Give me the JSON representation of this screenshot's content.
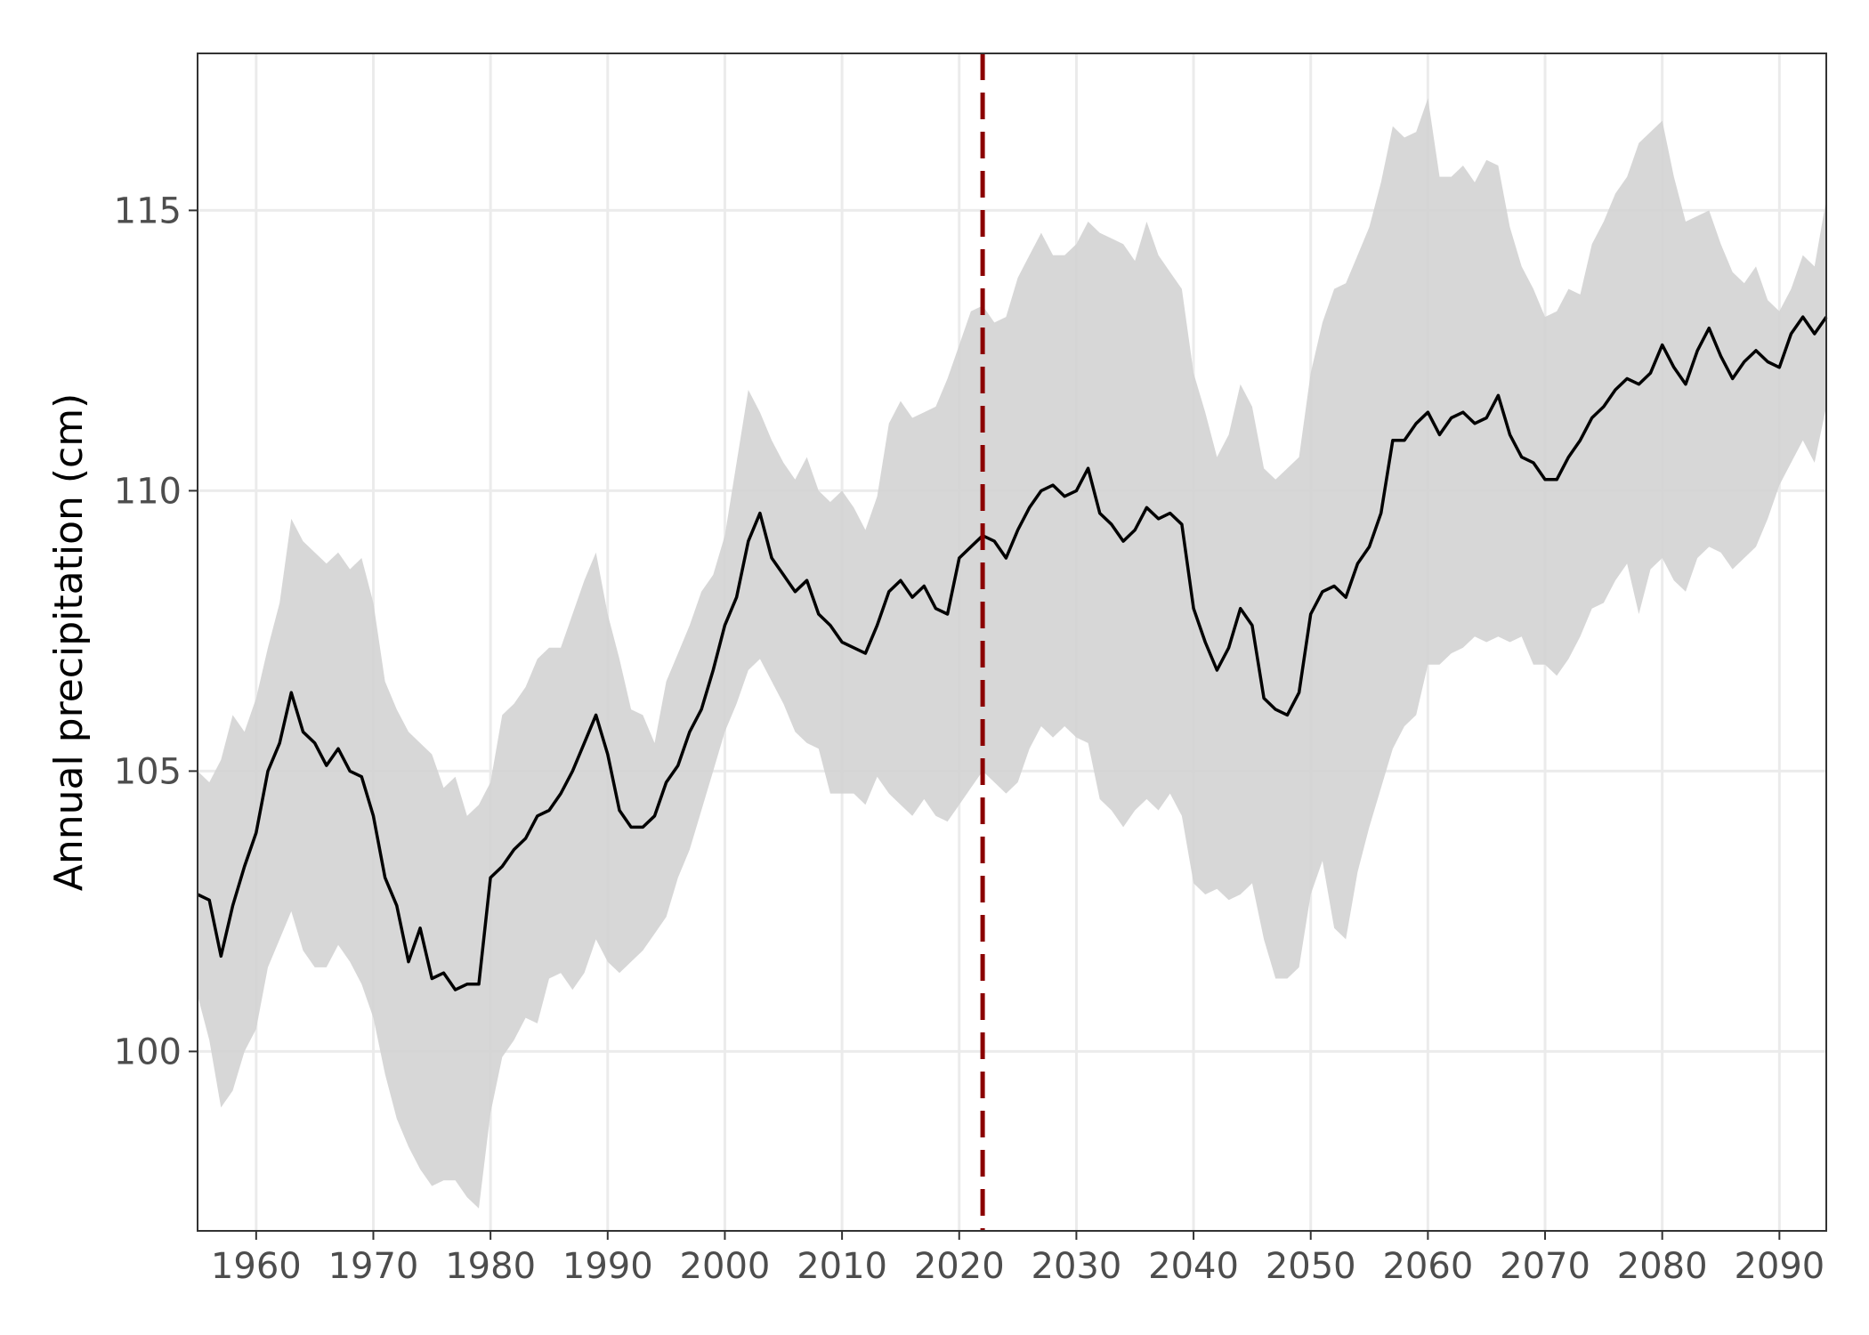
{
  "chart_data": {
    "type": "line",
    "title": "",
    "xlabel": "",
    "ylabel": "Annual precipitation (cm)",
    "xlim": [
      1955,
      2094
    ],
    "ylim": [
      96.8,
      117.8
    ],
    "x_ticks": [
      1960,
      1970,
      1980,
      1990,
      2000,
      2010,
      2020,
      2030,
      2040,
      2050,
      2060,
      2070,
      2080,
      2090
    ],
    "x_tick_labels": [
      "1960",
      "1970",
      "1980",
      "1990",
      "2000",
      "2010",
      "2020",
      "2030",
      "2040",
      "2050",
      "2060",
      "2070",
      "2080",
      "2090"
    ],
    "y_ticks": [
      100,
      105,
      110,
      115
    ],
    "y_tick_labels": [
      "100",
      "105",
      "110",
      "115"
    ],
    "grid": true,
    "legend": "none",
    "colors": {
      "line": "#000000",
      "band": "#d3d3d3",
      "reference_line": "#8b0000",
      "grid": "#ebebeb",
      "panel_border": "#333333",
      "tick_text": "#4d4d4d"
    },
    "reference_line": {
      "x": 2022,
      "style": "dashed"
    },
    "series": [
      {
        "type": "line",
        "x": [
          1955,
          1956,
          1957,
          1958,
          1959,
          1960,
          1961,
          1962,
          1963,
          1964,
          1965,
          1966,
          1967,
          1968,
          1969,
          1970,
          1971,
          1972,
          1973,
          1974,
          1975,
          1976,
          1977,
          1978,
          1979,
          1980,
          1981,
          1982,
          1983,
          1984,
          1985,
          1986,
          1987,
          1988,
          1989,
          1990,
          1991,
          1992,
          1993,
          1994,
          1995,
          1996,
          1997,
          1998,
          1999,
          2000,
          2001,
          2002,
          2003,
          2004,
          2005,
          2006,
          2007,
          2008,
          2009,
          2010,
          2011,
          2012,
          2013,
          2014,
          2015,
          2016,
          2017,
          2018,
          2019,
          2020,
          2021,
          2022,
          2023,
          2024,
          2025,
          2026,
          2027,
          2028,
          2029,
          2030,
          2031,
          2032,
          2033,
          2034,
          2035,
          2036,
          2037,
          2038,
          2039,
          2040,
          2041,
          2042,
          2043,
          2044,
          2045,
          2046,
          2047,
          2048,
          2049,
          2050,
          2051,
          2052,
          2053,
          2054,
          2055,
          2056,
          2057,
          2058,
          2059,
          2060,
          2061,
          2062,
          2063,
          2064,
          2065,
          2066,
          2067,
          2068,
          2069,
          2070,
          2071,
          2072,
          2073,
          2074,
          2075,
          2076,
          2077,
          2078,
          2079,
          2080,
          2081,
          2082,
          2083,
          2084,
          2085,
          2086,
          2087,
          2088,
          2089,
          2090,
          2091,
          2092,
          2093,
          2094
        ],
        "values": [
          102.8,
          102.7,
          101.7,
          102.6,
          103.3,
          103.9,
          105.0,
          105.5,
          106.4,
          105.7,
          105.5,
          105.1,
          105.4,
          105.0,
          104.9,
          104.2,
          103.1,
          102.6,
          101.6,
          102.2,
          101.3,
          101.4,
          101.1,
          101.2,
          101.2,
          103.1,
          103.3,
          103.6,
          103.8,
          104.2,
          104.3,
          104.6,
          105.0,
          105.5,
          106.0,
          105.3,
          104.3,
          104.0,
          104.0,
          104.2,
          104.8,
          105.1,
          105.7,
          106.1,
          106.8,
          107.6,
          108.1,
          109.1,
          109.6,
          108.8,
          108.5,
          108.2,
          108.4,
          107.8,
          107.6,
          107.3,
          107.2,
          107.1,
          107.6,
          108.2,
          108.4,
          108.1,
          108.3,
          107.9,
          107.8,
          108.8,
          109.0,
          109.2,
          109.1,
          108.8,
          109.3,
          109.7,
          110.0,
          110.1,
          109.9,
          110.0,
          110.4,
          109.6,
          109.4,
          109.1,
          109.3,
          109.7,
          109.5,
          109.6,
          109.4,
          107.9,
          107.3,
          106.8,
          107.2,
          107.9,
          107.6,
          106.3,
          106.1,
          106.0,
          106.4,
          107.8,
          108.2,
          108.3,
          108.1,
          108.7,
          109.0,
          109.6,
          110.9,
          110.9,
          111.2,
          111.4,
          111.0,
          111.3,
          111.4,
          111.2,
          111.3,
          111.7,
          111.0,
          110.6,
          110.5,
          110.2,
          110.2,
          110.6,
          110.9,
          111.3,
          111.5,
          111.8,
          112.0,
          111.9,
          112.1,
          112.6,
          112.2,
          111.9,
          112.5,
          112.9,
          112.4,
          112.0,
          112.3,
          112.5,
          112.3,
          112.2,
          112.8,
          113.1,
          112.8,
          113.1
        ],
        "lower": [
          101.0,
          100.2,
          99.0,
          99.3,
          100.0,
          100.4,
          101.5,
          102.0,
          102.5,
          101.8,
          101.5,
          101.5,
          101.9,
          101.6,
          101.2,
          100.6,
          99.6,
          98.8,
          98.3,
          97.9,
          97.6,
          97.7,
          97.7,
          97.4,
          97.2,
          98.9,
          99.9,
          100.2,
          100.6,
          100.5,
          101.3,
          101.4,
          101.1,
          101.4,
          102.0,
          101.6,
          101.4,
          101.6,
          101.8,
          102.1,
          102.4,
          103.1,
          103.6,
          104.3,
          105.0,
          105.7,
          106.2,
          106.8,
          107.0,
          106.6,
          106.2,
          105.7,
          105.5,
          105.4,
          104.6,
          104.6,
          104.6,
          104.4,
          104.9,
          104.6,
          104.4,
          104.2,
          104.5,
          104.2,
          104.1,
          104.4,
          104.7,
          105.0,
          104.8,
          104.6,
          104.8,
          105.4,
          105.8,
          105.6,
          105.8,
          105.6,
          105.5,
          104.5,
          104.3,
          104.0,
          104.3,
          104.5,
          104.3,
          104.6,
          104.2,
          103.0,
          102.8,
          102.9,
          102.7,
          102.8,
          103.0,
          102.0,
          101.3,
          101.3,
          101.5,
          102.8,
          103.4,
          102.2,
          102.0,
          103.2,
          104.0,
          104.7,
          105.4,
          105.8,
          106.0,
          106.9,
          106.9,
          107.1,
          107.2,
          107.4,
          107.3,
          107.4,
          107.3,
          107.4,
          106.9,
          106.9,
          106.7,
          107.0,
          107.4,
          107.9,
          108.0,
          108.4,
          108.7,
          107.8,
          108.6,
          108.8,
          108.4,
          108.2,
          108.8,
          109.0,
          108.9,
          108.6,
          108.8,
          109.0,
          109.5,
          110.1,
          110.5,
          110.9,
          110.5,
          111.5
        ],
        "upper": [
          105.0,
          104.8,
          105.2,
          106.0,
          105.7,
          106.3,
          107.2,
          108.0,
          109.5,
          109.1,
          108.9,
          108.7,
          108.9,
          108.6,
          108.8,
          108.0,
          106.6,
          106.1,
          105.7,
          105.5,
          105.3,
          104.7,
          104.9,
          104.2,
          104.4,
          104.8,
          106.0,
          106.2,
          106.5,
          107.0,
          107.2,
          107.2,
          107.8,
          108.4,
          108.9,
          107.8,
          107.0,
          106.1,
          106.0,
          105.5,
          106.6,
          107.1,
          107.6,
          108.2,
          108.5,
          109.2,
          110.5,
          111.8,
          111.4,
          110.9,
          110.5,
          110.2,
          110.6,
          110.0,
          109.8,
          110.0,
          109.7,
          109.3,
          109.9,
          111.2,
          111.6,
          111.3,
          111.4,
          111.5,
          112.0,
          112.6,
          113.2,
          113.3,
          113.0,
          113.1,
          113.8,
          114.2,
          114.6,
          114.2,
          114.2,
          114.4,
          114.8,
          114.6,
          114.5,
          114.4,
          114.1,
          114.8,
          114.2,
          113.9,
          113.6,
          112.1,
          111.4,
          110.6,
          111.0,
          111.9,
          111.5,
          110.4,
          110.2,
          110.4,
          110.6,
          112.1,
          113.0,
          113.6,
          113.7,
          114.2,
          114.7,
          115.5,
          116.5,
          116.3,
          116.4,
          117.0,
          115.6,
          115.6,
          115.8,
          115.5,
          115.9,
          115.8,
          114.7,
          114.0,
          113.6,
          113.1,
          113.2,
          113.6,
          113.5,
          114.4,
          114.8,
          115.3,
          115.6,
          116.2,
          116.4,
          116.6,
          115.6,
          114.8,
          114.9,
          115.0,
          114.4,
          113.9,
          113.7,
          114.0,
          113.4,
          113.2,
          113.6,
          114.2,
          114.0,
          115.2
        ]
      }
    ]
  }
}
